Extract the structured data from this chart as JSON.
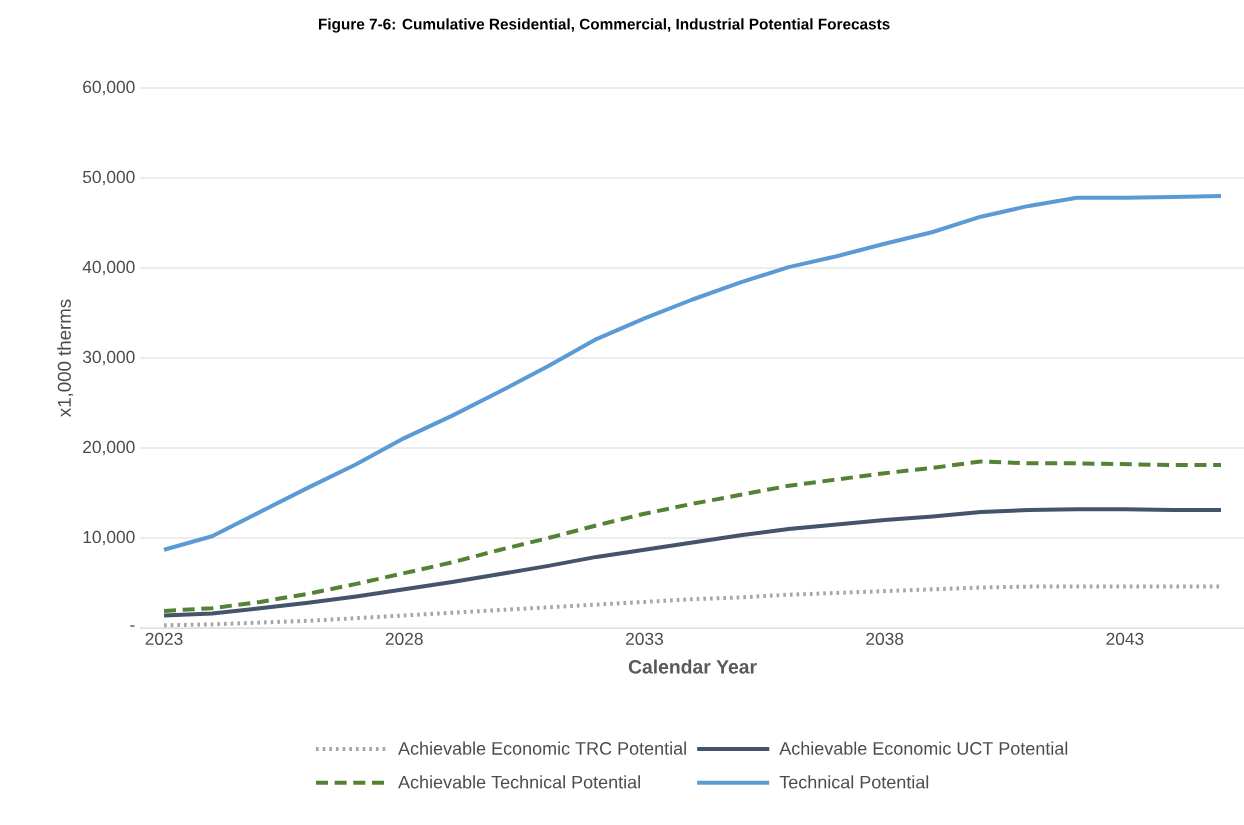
{
  "chart_data": {
    "type": "line",
    "title": "Figure 7-6: Cumulative Residential, Commercial, Industrial Potential Forecasts",
    "xlabel": "Calendar Year",
    "ylabel": "x1,000 therms",
    "x": [
      2023,
      2024,
      2025,
      2026,
      2027,
      2028,
      2029,
      2030,
      2031,
      2032,
      2033,
      2034,
      2035,
      2036,
      2037,
      2038,
      2039,
      2040,
      2041,
      2042,
      2043,
      2044,
      2045
    ],
    "xlim": [
      2022.5,
      2045.5
    ],
    "xticks": [
      2023,
      2028,
      2033,
      2038,
      2043
    ],
    "ylim": [
      0,
      60000
    ],
    "yticks": [
      {
        "value": 0,
        "label": "-"
      },
      {
        "value": 10000,
        "label": "10,000"
      },
      {
        "value": 20000,
        "label": "20,000"
      },
      {
        "value": 30000,
        "label": "30,000"
      },
      {
        "value": 40000,
        "label": "40,000"
      },
      {
        "value": 50000,
        "label": "50,000"
      },
      {
        "value": 60000,
        "label": "60,000"
      }
    ],
    "grid": "y",
    "legend": "bottom",
    "marker": "none",
    "series": [
      {
        "name": "Achievable Economic TRC Potential",
        "color": "#a6a6a6",
        "line_style": "dotted",
        "values": [
          300,
          400,
          600,
          800,
          1100,
          1400,
          1700,
          2000,
          2300,
          2600,
          2900,
          3200,
          3400,
          3700,
          3900,
          4100,
          4300,
          4500,
          4600,
          4600,
          4600,
          4600,
          4600
        ]
      },
      {
        "name": "Achievable Economic UCT Potential",
        "color": "#44546a",
        "line_style": "solid",
        "values": [
          1400,
          1600,
          2200,
          2800,
          3500,
          4300,
          5100,
          6000,
          6900,
          7900,
          8700,
          9500,
          10300,
          11000,
          11500,
          12000,
          12400,
          12900,
          13100,
          13200,
          13200,
          13100,
          13100
        ]
      },
      {
        "name": "Achievable Technical Potential",
        "color": "#548235",
        "line_style": "dashed",
        "values": [
          1900,
          2200,
          2900,
          3800,
          4900,
          6100,
          7300,
          8700,
          10000,
          11400,
          12700,
          13800,
          14800,
          15800,
          16500,
          17200,
          17800,
          18500,
          18300,
          18300,
          18200,
          18100,
          18100
        ]
      },
      {
        "name": "Technical Potential",
        "color": "#5b9bd5",
        "line_style": "solid",
        "values": [
          8700,
          10200,
          12900,
          15600,
          18200,
          21100,
          23600,
          26300,
          29100,
          32100,
          34400,
          36500,
          38400,
          40100,
          41300,
          42700,
          44000,
          45700,
          46900,
          47800,
          47800,
          47900,
          48000
        ]
      }
    ]
  }
}
